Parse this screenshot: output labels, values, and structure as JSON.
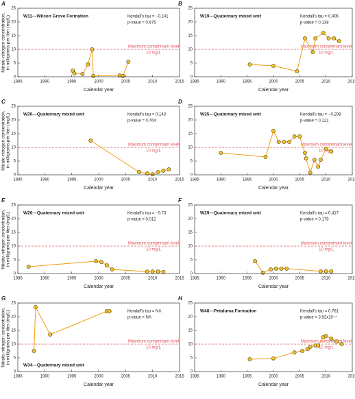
{
  "chart_data": [
    {
      "type": "line",
      "panel_label": "A",
      "title": "W11—Wilson Grove Formation",
      "title_corner": "upper left",
      "annotations": [
        "Kendall's tau = −0.141",
        "p-value = 0.675"
      ],
      "ylabel": [
        "Nitrate-nitrogen concentration,",
        "in milligrams per liter (mg/L)"
      ],
      "xlabel": "Calendar year",
      "x": [
        1995.2,
        1995.5,
        1997,
        1998,
        1998.8,
        1999,
        2003.9,
        2004.5,
        2005.5
      ],
      "values": [
        2.2,
        1.2,
        1,
        4.5,
        10,
        0.3,
        0.5,
        0.3,
        5.5
      ],
      "color": "#f39c12",
      "marker_color": "#f2c12e",
      "reference": {
        "value": 10,
        "label": [
          "Maximum contaminant level",
          "10 mg/L"
        ],
        "color": "#e0525a"
      },
      "xlim": [
        1985,
        2015
      ],
      "ylim": [
        0,
        25
      ],
      "xticks": [
        1985,
        1990,
        1995,
        2000,
        2005,
        2010,
        2015
      ],
      "yticks": [
        0,
        5,
        10,
        15,
        20,
        25
      ]
    },
    {
      "type": "line",
      "panel_label": "B",
      "title": "W19—Quaternary mixed unit",
      "title_corner": "upper left",
      "annotations": [
        "Kendall's tau = 0.406",
        "p-value = 0.138"
      ],
      "xlabel": "Calendar year",
      "x": [
        1995.5,
        2000,
        2004.5,
        2006,
        2007.5,
        2008,
        2009.5,
        2010.5,
        2011.5,
        2012.5
      ],
      "values": [
        4.5,
        4,
        2,
        14,
        9,
        14,
        16,
        14,
        14,
        13
      ],
      "color": "#f39c12",
      "marker_color": "#f2c12e",
      "reference": {
        "value": 10,
        "label": [
          "Maximum contaminant level",
          "10 mg/L"
        ],
        "color": "#e0525a"
      },
      "xlim": [
        1985,
        2015
      ],
      "ylim": [
        0,
        25
      ],
      "xticks": [
        1985,
        1990,
        1995,
        2000,
        2005,
        2010,
        2015
      ],
      "yticks": [
        0,
        5,
        10,
        15,
        20,
        25
      ]
    },
    {
      "type": "line",
      "panel_label": "C",
      "title": "W20—Quaternary mixed unit",
      "title_corner": "upper left",
      "annotations": [
        "Kendall's tau = 0.143",
        "p-value = 0.764"
      ],
      "ylabel": [
        "Nitrate-nitrogen concentration,",
        "in milligrams per liter (mg/L)"
      ],
      "xlabel": "Calendar year",
      "x": [
        1998.5,
        2007.5,
        2009,
        2010,
        2011,
        2012,
        2013
      ],
      "values": [
        12.5,
        1,
        0.5,
        0.2,
        1,
        1.5,
        2
      ],
      "color": "#f39c12",
      "marker_color": "#f2c12e",
      "reference": {
        "value": 10,
        "label": [
          "Maximum contaminant level",
          "10 mg/L"
        ],
        "color": "#e0525a"
      },
      "xlim": [
        1985,
        2015
      ],
      "ylim": [
        0,
        25
      ],
      "xticks": [
        1985,
        1990,
        1995,
        2000,
        2005,
        2010,
        2015
      ],
      "yticks": [
        0,
        5,
        10,
        15,
        20,
        25
      ]
    },
    {
      "type": "line",
      "panel_label": "D",
      "title": "W25—Quaternary mixed unit",
      "title_corner": "upper left",
      "annotations": [
        "Kendall's tau = −0.298",
        "p-value = 0.121"
      ],
      "xlabel": "Calendar year",
      "x": [
        1990,
        1998.5,
        2000,
        2001,
        2002,
        2003,
        2004,
        2005,
        2006,
        2006.2,
        2007,
        2007.8,
        2008.5,
        2009,
        2010,
        2011
      ],
      "values": [
        8,
        6.5,
        16,
        12,
        12,
        12,
        14,
        14,
        8,
        6,
        0.8,
        5.5,
        3,
        5.5,
        9.5,
        8.5
      ],
      "color": "#f39c12",
      "marker_color": "#f2c12e",
      "reference": {
        "value": 10,
        "label": [
          "Maximum contaminant level",
          "10 mg/L"
        ],
        "color": "#e0525a"
      },
      "xlim": [
        1985,
        2015
      ],
      "ylim": [
        0,
        25
      ],
      "xticks": [
        1985,
        1990,
        1995,
        2000,
        2005,
        2010,
        2015
      ],
      "yticks": [
        0,
        5,
        10,
        15,
        20,
        25
      ]
    },
    {
      "type": "line",
      "panel_label": "E",
      "title": "W26—Quaternary mixed unit",
      "title_corner": "upper left",
      "annotations": [
        "Kendall's tau = −0.73",
        "p-value = 0.012"
      ],
      "ylabel": [
        "Nitrate-nitrogen concentration,",
        "in milligrams per liter (mg/L)"
      ],
      "xlabel": "Calendar year",
      "x": [
        1987,
        1999.5,
        2000.5,
        2001.5,
        2002.5,
        2009,
        2010,
        2011,
        2012
      ],
      "values": [
        2.5,
        4.5,
        4.2,
        3,
        1.5,
        0.7,
        0.7,
        0.7,
        0.6
      ],
      "color": "#f39c12",
      "marker_color": "#f2c12e",
      "reference": {
        "value": 10,
        "label": [
          "Maximum contaminant level",
          "10 mg/L"
        ],
        "color": "#e0525a"
      },
      "xlim": [
        1985,
        2015
      ],
      "ylim": [
        0,
        25
      ],
      "xticks": [
        1985,
        1990,
        1995,
        2000,
        2005,
        2010,
        2015
      ],
      "yticks": [
        0,
        5,
        10,
        15,
        20,
        25
      ]
    },
    {
      "type": "line",
      "panel_label": "F",
      "title": "W29—Quaternary mixed unit",
      "title_corner": "upper left",
      "annotations": [
        "Kendall's tau = 0.417",
        "p-value = 0.179"
      ],
      "xlabel": "Calendar year",
      "x": [
        1996.5,
        1998,
        1999.5,
        2000.5,
        2001.5,
        2002.5,
        2009,
        2010,
        2011
      ],
      "values": [
        4.5,
        0.3,
        1.5,
        1.8,
        1.8,
        1.8,
        0.8,
        0.8,
        0.8
      ],
      "color": "#f39c12",
      "marker_color": "#f2c12e",
      "reference": {
        "value": 10,
        "label": [
          "Maximum contaminant level",
          "10 mg/L"
        ],
        "color": "#e0525a"
      },
      "xlim": [
        1985,
        2015
      ],
      "ylim": [
        0,
        25
      ],
      "xticks": [
        1985,
        1990,
        1995,
        2000,
        2005,
        2010,
        2015
      ],
      "yticks": [
        0,
        5,
        10,
        15,
        20,
        25
      ]
    },
    {
      "type": "line",
      "panel_label": "G",
      "title": "W34—Quaternary mixed unit",
      "title_corner": "lower left",
      "annotations": [
        "Kendall's tau = NA",
        "p-value = NA"
      ],
      "ylabel": [
        "Nitrate-nitrogen concentration,",
        "in milligrams per liter (mg/L)"
      ],
      "xlabel": "Calendar year",
      "x": [
        1988,
        1988.3,
        1991,
        2001.5,
        2002
      ],
      "values": [
        7.5,
        23.5,
        13.5,
        22,
        22
      ],
      "color": "#f39c12",
      "marker_color": "#f2c12e",
      "reference": {
        "value": 10,
        "label": [
          "Maximum contaminant level",
          "10 mg/L"
        ],
        "color": "#e0525a"
      },
      "xlim": [
        1985,
        2015
      ],
      "ylim": [
        0,
        25
      ],
      "xticks": [
        1985,
        1990,
        1995,
        2000,
        2005,
        2010,
        2015
      ],
      "yticks": [
        0,
        5,
        10,
        15,
        20,
        25
      ]
    },
    {
      "type": "line",
      "panel_label": "H",
      "title": "W48—Petaluma Formation",
      "title_corner": "upper left",
      "annotations": [
        "Kendall's tau = 0.761",
        "p-value = 3.92x10⁻⁴"
      ],
      "xlabel": "Calendar year",
      "x": [
        1995.5,
        2000,
        2004,
        2005.5,
        2006.5,
        2007,
        2008,
        2008.5,
        2009.5,
        2010,
        2011,
        2012,
        2013
      ],
      "values": [
        4.5,
        4.8,
        7,
        7.5,
        8.2,
        9,
        9.5,
        9.5,
        12.5,
        13,
        12,
        11,
        10
      ],
      "color": "#f39c12",
      "marker_color": "#f2c12e",
      "reference": {
        "value": 10,
        "label": [
          "Maximum contaminant level",
          "10 mg/L"
        ],
        "color": "#e0525a"
      },
      "xlim": [
        1985,
        2015
      ],
      "ylim": [
        0,
        25
      ],
      "xticks": [
        1985,
        1990,
        1995,
        2000,
        2005,
        2010,
        2015
      ],
      "yticks": [
        0,
        5,
        10,
        15,
        20,
        25
      ]
    }
  ]
}
